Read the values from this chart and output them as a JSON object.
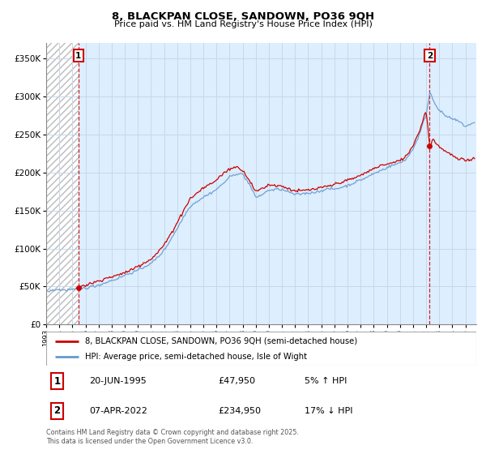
{
  "title": "8, BLACKPAN CLOSE, SANDOWN, PO36 9QH",
  "subtitle": "Price paid vs. HM Land Registry's House Price Index (HPI)",
  "ylim": [
    0,
    370000
  ],
  "xlim_start": 1993.0,
  "xlim_end": 2025.83,
  "hatch_color": "#bbbbbb",
  "grid_color": "#c8d8e8",
  "price_line_color": "#cc0000",
  "hpi_line_color": "#6699cc",
  "marker_color": "#cc0000",
  "vline_color": "#cc0000",
  "sale1_x": 1995.46,
  "sale1_y": 47950,
  "sale2_x": 2022.27,
  "sale2_y": 234950,
  "legend_line1": "8, BLACKPAN CLOSE, SANDOWN, PO36 9QH (semi-detached house)",
  "legend_line2": "HPI: Average price, semi-detached house, Isle of Wight",
  "ann1_date": "20-JUN-1995",
  "ann1_price": "£47,950",
  "ann1_hpi": "5% ↑ HPI",
  "ann2_date": "07-APR-2022",
  "ann2_price": "£234,950",
  "ann2_hpi": "17% ↓ HPI",
  "footnote": "Contains HM Land Registry data © Crown copyright and database right 2025.\nThis data is licensed under the Open Government Licence v3.0.",
  "background_color": "#ffffff",
  "plot_bg_color": "#ddeeff"
}
